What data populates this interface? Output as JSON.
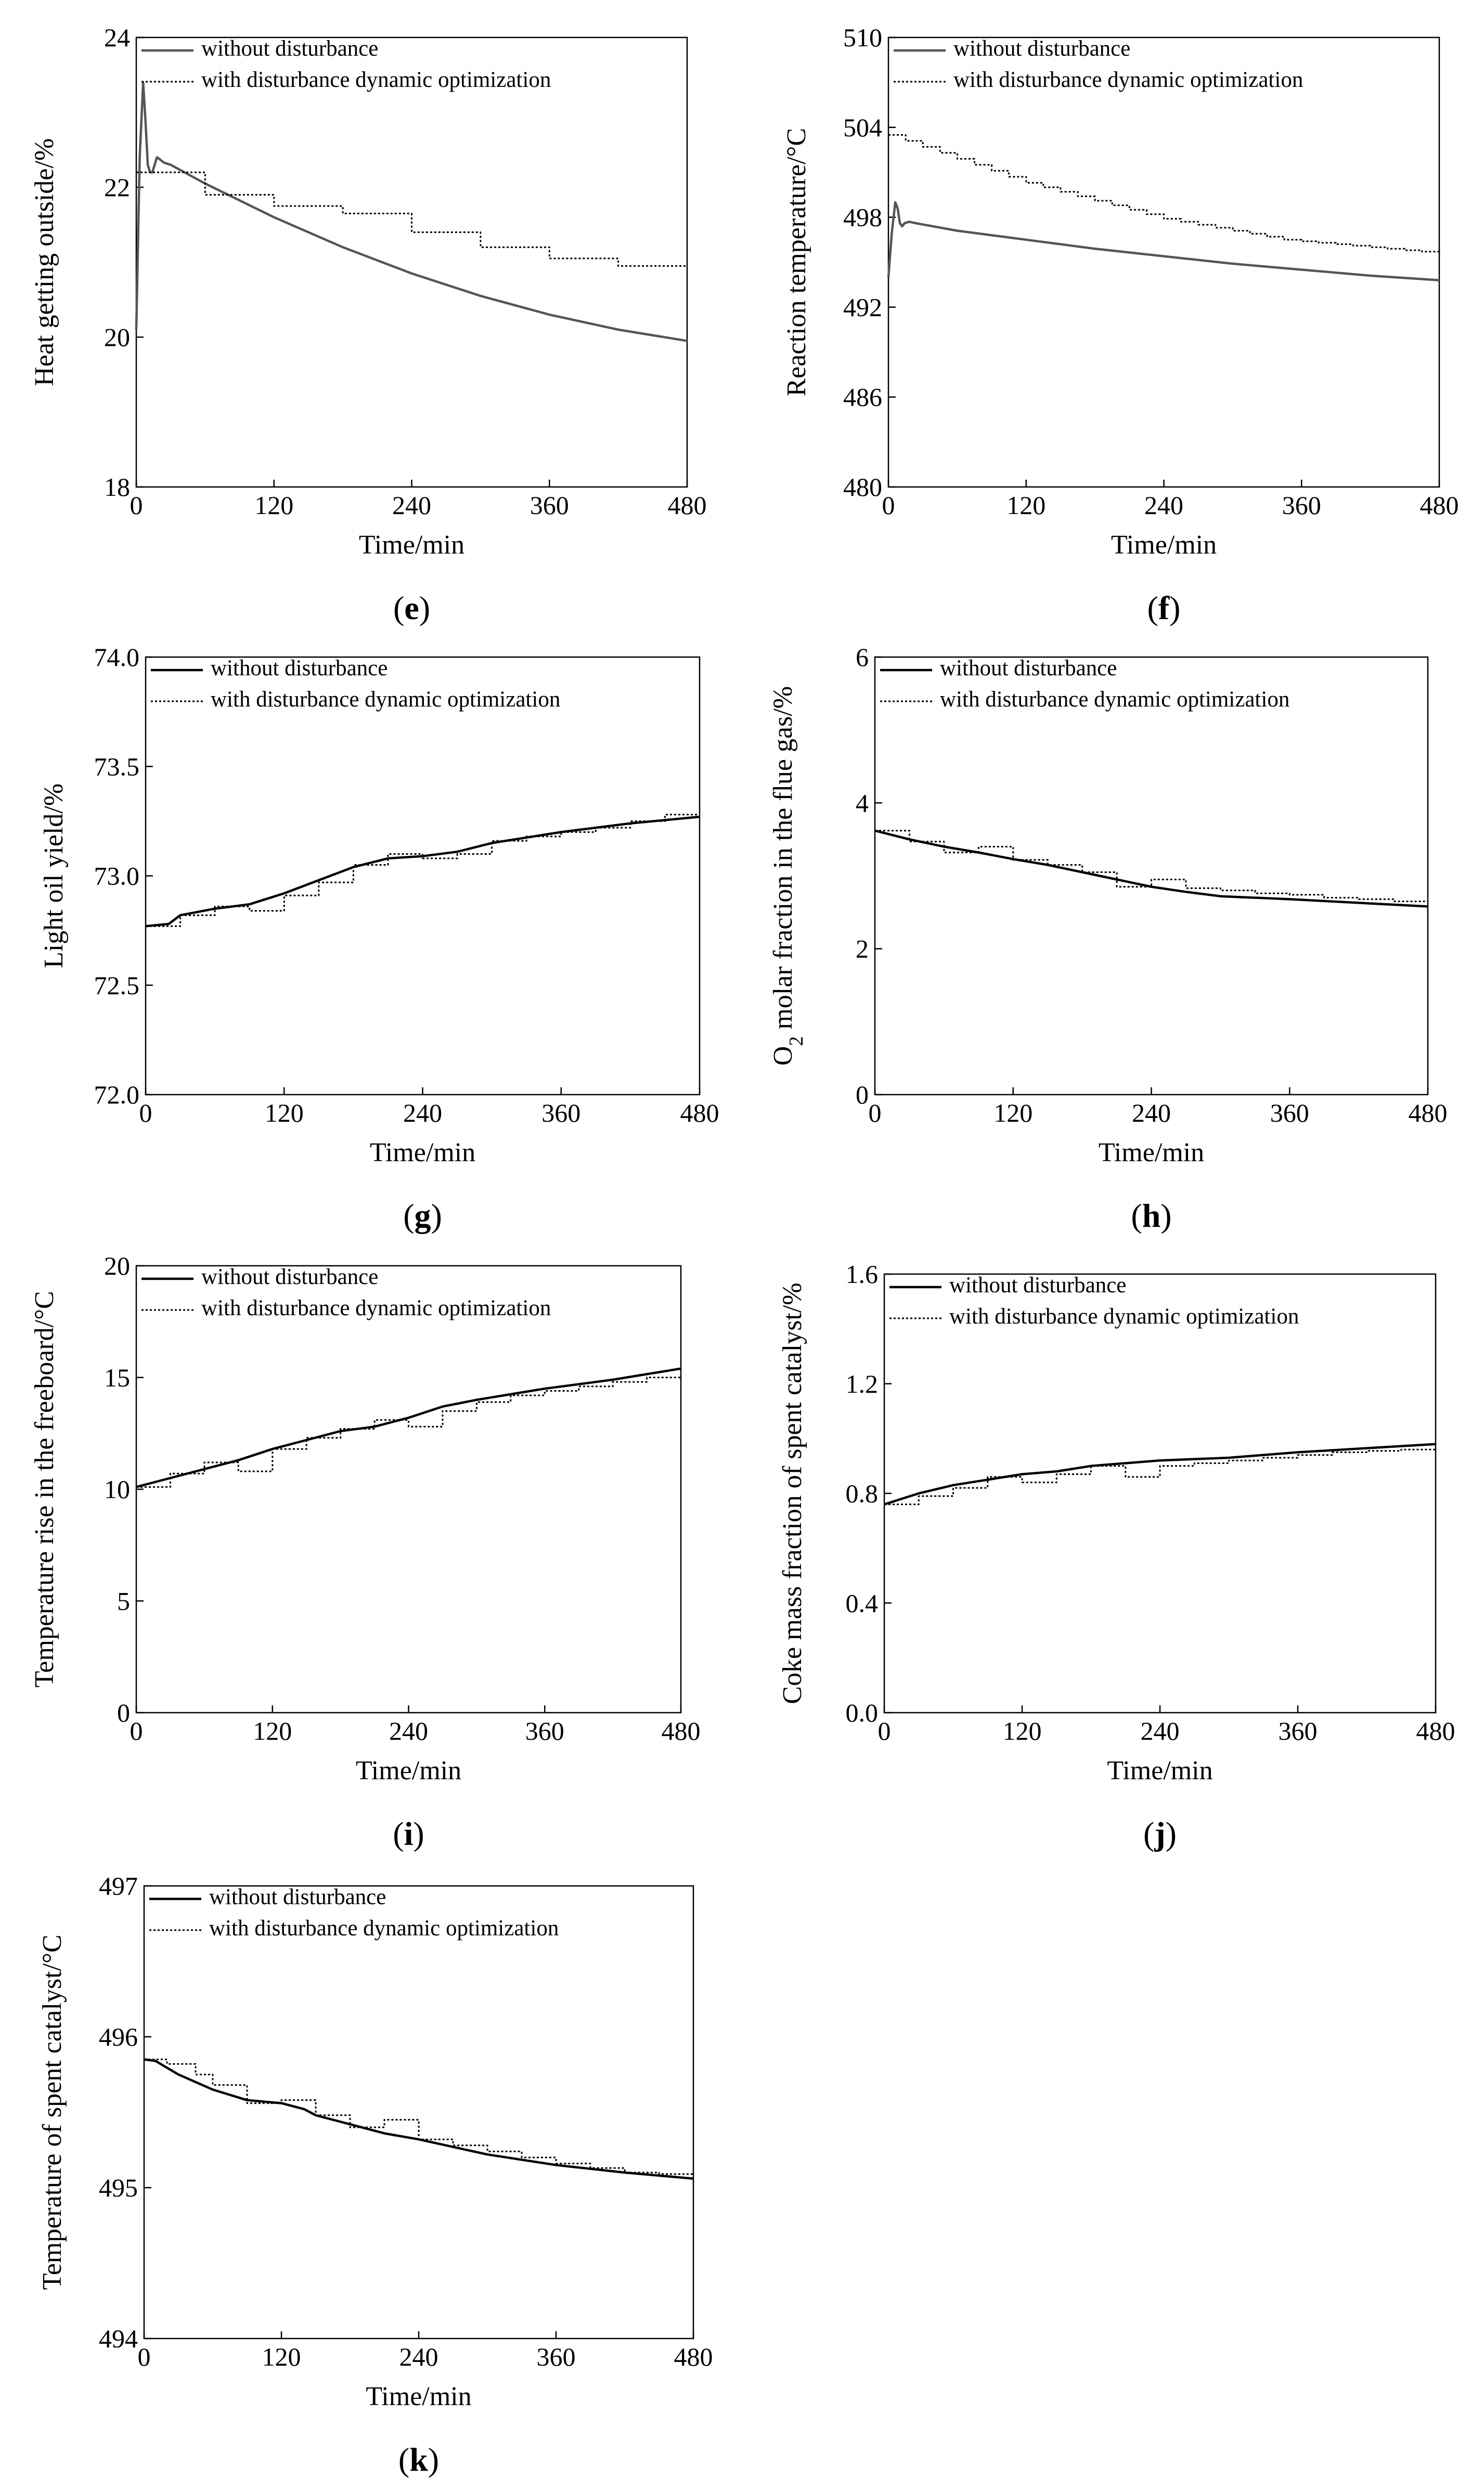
{
  "figure": {
    "legend": {
      "solid_label": "without disturbance",
      "dotted_label": "with disturbance dynamic optimization"
    }
  },
  "chart_data": [
    {
      "id": "e",
      "type": "line",
      "panel_letter": "e",
      "xlabel": "Time/min",
      "ylabel": "Heat getting outside/%",
      "xlim": [
        0,
        480
      ],
      "ylim": [
        18,
        24
      ],
      "xticks": [
        0,
        120,
        240,
        360,
        480
      ],
      "yticks": [
        18,
        20,
        22,
        24
      ],
      "series": [
        {
          "name": "without disturbance",
          "style": "solid",
          "color": "#555555",
          "x": [
            0,
            3,
            6,
            8,
            10,
            12,
            14,
            16,
            18,
            20,
            24,
            30,
            60,
            120,
            180,
            240,
            300,
            360,
            420,
            480
          ],
          "y": [
            20.1,
            22.4,
            23.4,
            22.9,
            22.3,
            22.2,
            22.2,
            22.3,
            22.4,
            22.38,
            22.33,
            22.3,
            22.05,
            21.6,
            21.2,
            20.85,
            20.55,
            20.3,
            20.1,
            19.95
          ]
        },
        {
          "name": "with disturbance dynamic optimization",
          "style": "step",
          "color": "#000000",
          "x": [
            0,
            60,
            120,
            180,
            240,
            300,
            360,
            420,
            480
          ],
          "y": [
            22.2,
            21.9,
            21.75,
            21.65,
            21.4,
            21.2,
            21.05,
            20.95,
            20.95
          ]
        }
      ]
    },
    {
      "id": "f",
      "type": "line",
      "panel_letter": "f",
      "xlabel": "Time/min",
      "ylabel": "Reaction temperature/°C",
      "xlim": [
        0,
        480
      ],
      "ylim": [
        480,
        510
      ],
      "xticks": [
        0,
        120,
        240,
        360,
        480
      ],
      "yticks": [
        480,
        486,
        492,
        498,
        504,
        510
      ],
      "series": [
        {
          "name": "without disturbance",
          "style": "solid",
          "color": "#555555",
          "x": [
            0,
            3,
            6,
            8,
            10,
            12,
            14,
            18,
            24,
            60,
            120,
            180,
            240,
            300,
            360,
            420,
            480
          ],
          "y": [
            494.0,
            497.0,
            499.0,
            498.6,
            497.6,
            497.4,
            497.6,
            497.7,
            497.6,
            497.1,
            496.5,
            495.9,
            495.4,
            494.9,
            494.5,
            494.1,
            493.8
          ]
        },
        {
          "name": "with disturbance dynamic optimization",
          "style": "step",
          "color": "#000000",
          "x": [
            0,
            15,
            30,
            45,
            60,
            75,
            90,
            105,
            120,
            135,
            150,
            165,
            180,
            195,
            210,
            225,
            240,
            255,
            270,
            285,
            300,
            315,
            330,
            345,
            360,
            375,
            390,
            405,
            420,
            435,
            450,
            465,
            480
          ],
          "y": [
            503.5,
            503.1,
            502.7,
            502.3,
            501.9,
            501.5,
            501.1,
            500.7,
            500.3,
            500.0,
            499.7,
            499.4,
            499.1,
            498.8,
            498.5,
            498.2,
            497.9,
            497.7,
            497.5,
            497.3,
            497.1,
            496.9,
            496.7,
            496.5,
            496.4,
            496.3,
            496.2,
            496.1,
            496.0,
            495.9,
            495.8,
            495.7,
            495.6
          ]
        }
      ]
    },
    {
      "id": "g",
      "type": "line",
      "panel_letter": "g",
      "xlabel": "Time/min",
      "ylabel": "Light oil yield/%",
      "xlim": [
        0,
        480
      ],
      "ylim": [
        72.0,
        74.0
      ],
      "xticks": [
        0,
        120,
        240,
        360,
        480
      ],
      "yticks": [
        72.0,
        72.5,
        73.0,
        73.5,
        74.0
      ],
      "series": [
        {
          "name": "without disturbance",
          "style": "solid",
          "color": "#000000",
          "x": [
            0,
            20,
            30,
            60,
            90,
            120,
            150,
            180,
            210,
            240,
            270,
            300,
            360,
            420,
            480
          ],
          "y": [
            72.77,
            72.78,
            72.82,
            72.85,
            72.87,
            72.92,
            72.98,
            73.04,
            73.08,
            73.09,
            73.11,
            73.15,
            73.2,
            73.24,
            73.27
          ]
        },
        {
          "name": "with disturbance dynamic optimization",
          "style": "step",
          "color": "#000000",
          "x": [
            0,
            30,
            60,
            90,
            120,
            150,
            180,
            210,
            240,
            270,
            300,
            330,
            360,
            390,
            420,
            450,
            480
          ],
          "y": [
            72.77,
            72.82,
            72.86,
            72.84,
            72.91,
            72.97,
            73.05,
            73.1,
            73.08,
            73.1,
            73.16,
            73.18,
            73.2,
            73.22,
            73.25,
            73.28,
            73.28
          ]
        }
      ]
    },
    {
      "id": "h",
      "type": "line",
      "panel_letter": "h",
      "xlabel": "Time/min",
      "ylabel_main": "O",
      "ylabel_sub": "2",
      "ylabel_rest": " molar fraction in the flue gas/%",
      "xlim": [
        0,
        480
      ],
      "ylim": [
        0,
        6
      ],
      "xticks": [
        0,
        120,
        240,
        360,
        480
      ],
      "yticks": [
        0,
        2,
        4,
        6
      ],
      "series": [
        {
          "name": "without disturbance",
          "style": "solid",
          "color": "#000000",
          "x": [
            0,
            30,
            60,
            90,
            120,
            150,
            180,
            210,
            240,
            270,
            300,
            360,
            420,
            480
          ],
          "y": [
            3.62,
            3.5,
            3.4,
            3.32,
            3.23,
            3.15,
            3.05,
            2.95,
            2.85,
            2.78,
            2.72,
            2.68,
            2.63,
            2.58
          ]
        },
        {
          "name": "with disturbance dynamic optimization",
          "style": "step",
          "color": "#000000",
          "x": [
            0,
            30,
            60,
            90,
            120,
            150,
            180,
            210,
            240,
            270,
            300,
            330,
            360,
            390,
            420,
            450,
            480
          ],
          "y": [
            3.62,
            3.47,
            3.32,
            3.4,
            3.22,
            3.15,
            3.05,
            2.85,
            2.95,
            2.83,
            2.8,
            2.76,
            2.74,
            2.7,
            2.68,
            2.65,
            2.65
          ]
        }
      ]
    },
    {
      "id": "i",
      "type": "line",
      "panel_letter": "i",
      "xlabel": "Time/min",
      "ylabel": "Temperature rise in the freeboard/°C",
      "xlim": [
        0,
        480
      ],
      "ylim": [
        0,
        20
      ],
      "xticks": [
        0,
        120,
        240,
        360,
        480
      ],
      "yticks": [
        0,
        5,
        10,
        15,
        20
      ],
      "series": [
        {
          "name": "without disturbance",
          "style": "solid",
          "color": "#000000",
          "x": [
            0,
            30,
            60,
            90,
            120,
            150,
            180,
            210,
            240,
            270,
            300,
            360,
            420,
            480
          ],
          "y": [
            10.1,
            10.5,
            10.9,
            11.3,
            11.8,
            12.2,
            12.6,
            12.8,
            13.2,
            13.7,
            14.0,
            14.5,
            14.9,
            15.4
          ]
        },
        {
          "name": "with disturbance dynamic optimization",
          "style": "step",
          "color": "#000000",
          "x": [
            0,
            30,
            60,
            90,
            120,
            150,
            180,
            210,
            240,
            270,
            300,
            330,
            360,
            390,
            420,
            450,
            480
          ],
          "y": [
            10.1,
            10.7,
            11.2,
            10.8,
            11.8,
            12.3,
            12.7,
            13.1,
            12.8,
            13.5,
            13.9,
            14.2,
            14.4,
            14.6,
            14.8,
            15.0,
            15.0
          ]
        }
      ]
    },
    {
      "id": "j",
      "type": "line",
      "panel_letter": "j",
      "xlabel": "Time/min",
      "ylabel": "Coke mass fraction of spent catalyst/%",
      "xlim": [
        0,
        480
      ],
      "ylim": [
        0.0,
        1.6
      ],
      "xticks": [
        0,
        120,
        240,
        360,
        480
      ],
      "yticks": [
        0.0,
        0.4,
        0.8,
        1.2,
        1.6
      ],
      "series": [
        {
          "name": "without disturbance",
          "style": "solid",
          "color": "#000000",
          "x": [
            0,
            30,
            60,
            90,
            120,
            150,
            180,
            210,
            240,
            270,
            300,
            360,
            420,
            480
          ],
          "y": [
            0.76,
            0.8,
            0.83,
            0.85,
            0.87,
            0.88,
            0.9,
            0.91,
            0.92,
            0.925,
            0.93,
            0.95,
            0.965,
            0.98
          ]
        },
        {
          "name": "with disturbance dynamic optimization",
          "style": "step",
          "color": "#000000",
          "x": [
            0,
            30,
            60,
            90,
            120,
            150,
            180,
            210,
            240,
            270,
            300,
            330,
            360,
            390,
            420,
            450,
            480
          ],
          "y": [
            0.76,
            0.79,
            0.82,
            0.86,
            0.84,
            0.87,
            0.9,
            0.86,
            0.9,
            0.91,
            0.92,
            0.93,
            0.94,
            0.95,
            0.955,
            0.96,
            0.96
          ]
        }
      ]
    },
    {
      "id": "k",
      "type": "line",
      "panel_letter": "k",
      "xlabel": "Time/min",
      "ylabel": "Temperature of spent catalyst/°C",
      "xlim": [
        0,
        480
      ],
      "ylim": [
        494,
        497
      ],
      "xticks": [
        0,
        120,
        240,
        360,
        480
      ],
      "yticks": [
        494,
        495,
        496,
        497
      ],
      "series": [
        {
          "name": "without disturbance",
          "style": "solid",
          "color": "#000000",
          "x": [
            0,
            10,
            30,
            60,
            90,
            120,
            140,
            150,
            180,
            210,
            240,
            270,
            300,
            360,
            420,
            480
          ],
          "y": [
            495.85,
            495.84,
            495.75,
            495.65,
            495.58,
            495.56,
            495.52,
            495.48,
            495.42,
            495.36,
            495.32,
            495.27,
            495.22,
            495.15,
            495.1,
            495.06
          ]
        },
        {
          "name": "with disturbance dynamic optimization",
          "style": "step",
          "color": "#000000",
          "x": [
            0,
            20,
            45,
            60,
            90,
            120,
            150,
            180,
            210,
            240,
            270,
            300,
            330,
            360,
            390,
            420,
            450,
            480
          ],
          "y": [
            495.85,
            495.82,
            495.75,
            495.68,
            495.56,
            495.58,
            495.48,
            495.4,
            495.45,
            495.32,
            495.28,
            495.24,
            495.2,
            495.16,
            495.13,
            495.1,
            495.09,
            495.09
          ]
        }
      ]
    }
  ]
}
